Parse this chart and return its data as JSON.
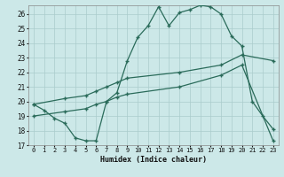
{
  "xlabel": "Humidex (Indice chaleur)",
  "bg_color": "#cce8e8",
  "grid_color": "#aacccc",
  "line_color": "#2a6b5a",
  "xlim": [
    -0.5,
    23.5
  ],
  "ylim": [
    17,
    26.6
  ],
  "xticks": [
    0,
    1,
    2,
    3,
    4,
    5,
    6,
    7,
    8,
    9,
    10,
    11,
    12,
    13,
    14,
    15,
    16,
    17,
    18,
    19,
    20,
    21,
    22,
    23
  ],
  "yticks": [
    17,
    18,
    19,
    20,
    21,
    22,
    23,
    24,
    25,
    26
  ],
  "main_x": [
    0,
    1,
    2,
    3,
    4,
    5,
    6,
    7,
    8,
    9,
    10,
    11,
    12,
    13,
    14,
    15,
    16,
    17,
    18,
    19,
    20,
    21,
    22,
    23
  ],
  "main_y": [
    19.8,
    19.4,
    18.85,
    18.5,
    17.5,
    17.3,
    17.3,
    20.0,
    20.6,
    22.8,
    24.4,
    25.2,
    26.5,
    25.2,
    26.1,
    26.3,
    26.6,
    26.5,
    26.0,
    24.5,
    23.8,
    20.0,
    19.0,
    18.1
  ],
  "diag1_x": [
    0,
    3,
    5,
    6,
    7,
    8,
    9,
    14,
    18,
    20,
    23
  ],
  "diag1_y": [
    19.8,
    20.2,
    20.4,
    20.7,
    21.0,
    21.3,
    21.6,
    22.0,
    22.5,
    23.2,
    22.8
  ],
  "diag2_x": [
    0,
    3,
    5,
    6,
    7,
    8,
    9,
    14,
    18,
    20,
    23
  ],
  "diag2_y": [
    19.0,
    19.3,
    19.5,
    19.8,
    20.0,
    20.3,
    20.5,
    21.0,
    21.8,
    22.5,
    17.3
  ],
  "marker": "+",
  "markersize": 3,
  "linewidth": 0.9
}
